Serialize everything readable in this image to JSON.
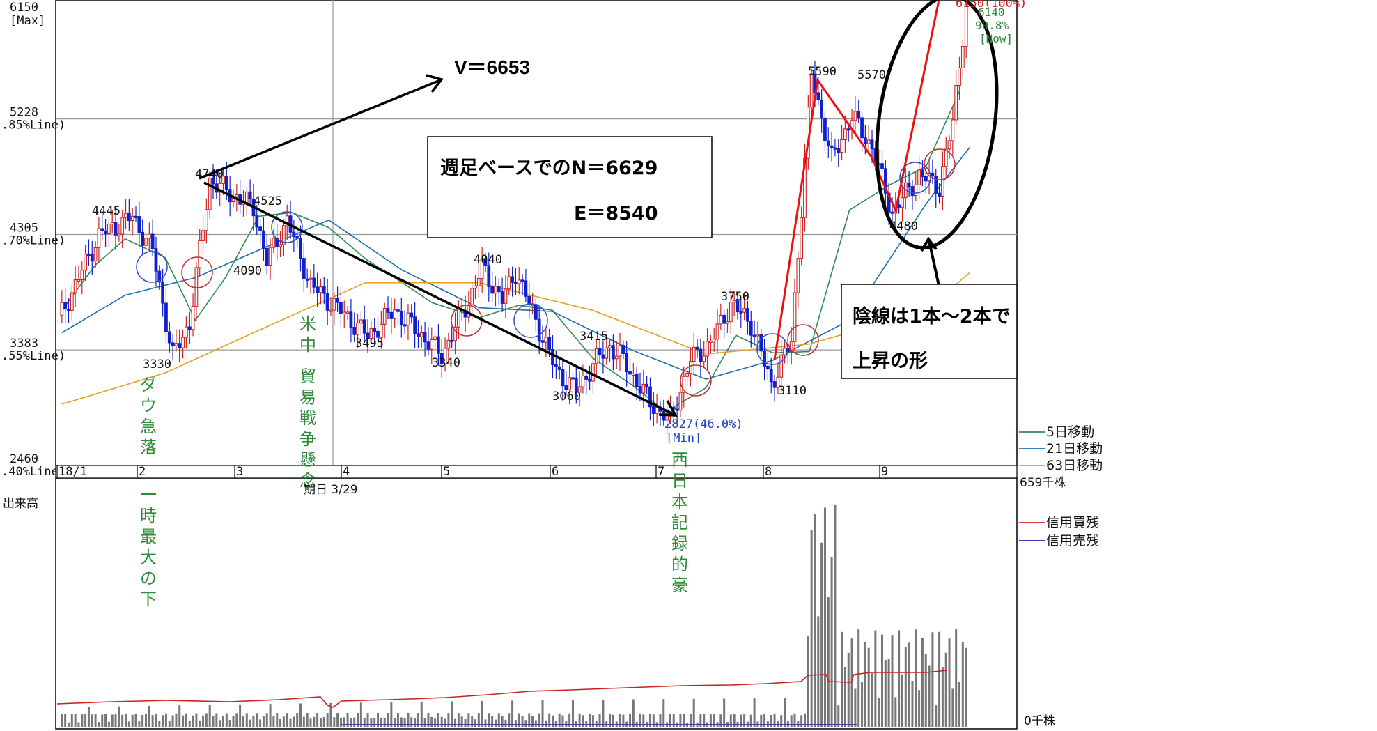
{
  "chart_data": {
    "type": "candlestick",
    "title": "",
    "y_axis": {
      "ticks": [
        {
          "value": 6150,
          "label": "6150",
          "sub": "[Max]"
        },
        {
          "value": 5228,
          "label": "5228",
          "sub": "85%Line)"
        },
        {
          "value": 4305,
          "label": "4305",
          "sub": "70%Line)"
        },
        {
          "value": 3383,
          "label": "3383",
          "sub": "55%Line)"
        },
        {
          "value": 2460,
          "label": "2460",
          "sub": "40%Line)"
        }
      ],
      "range": [
        2460,
        6150
      ]
    },
    "x_axis": {
      "months": [
        "18/1",
        "2",
        "3",
        "4",
        "5",
        "6",
        "7",
        "8",
        "9"
      ],
      "range": [
        "2018-01-04",
        "2018-10-04"
      ]
    },
    "period_label": "期日 3/29",
    "price_labels": [
      "4445",
      "4740",
      "4525",
      "4090",
      "3330",
      "3495",
      "4040",
      "3340",
      "3060",
      "3415",
      "3750",
      "3110",
      "5590",
      "5570",
      "4480"
    ],
    "min_label": [
      "2827(46.0%)",
      "[Min]"
    ],
    "max_label": "6150(100%)",
    "current_label": [
      "6140",
      "99.8%",
      "[Now]"
    ],
    "series": [
      {
        "name": "5日移動",
        "color": "#2e8b57",
        "points": [
          [
            "2018-01-05",
            3700
          ],
          [
            "2018-01-15",
            4060
          ],
          [
            "2018-01-24",
            4270
          ],
          [
            "2018-02-05",
            4120
          ],
          [
            "2018-02-14",
            3620
          ],
          [
            "2018-02-23",
            3960
          ],
          [
            "2018-03-05",
            4450
          ],
          [
            "2018-03-15",
            4480
          ],
          [
            "2018-03-26",
            4360
          ],
          [
            "2018-04-06",
            4110
          ],
          [
            "2018-04-17",
            3920
          ],
          [
            "2018-04-26",
            3760
          ],
          [
            "2018-05-10",
            3640
          ],
          [
            "2018-05-22",
            3740
          ],
          [
            "2018-06-01",
            3700
          ],
          [
            "2018-06-13",
            3320
          ],
          [
            "2018-06-25",
            3100
          ],
          [
            "2018-07-05",
            2890
          ],
          [
            "2018-07-17",
            3080
          ],
          [
            "2018-07-26",
            3500
          ],
          [
            "2018-08-06",
            3360
          ],
          [
            "2018-08-17",
            3370
          ],
          [
            "2018-08-29",
            4500
          ],
          [
            "2018-09-10",
            4700
          ],
          [
            "2018-09-21",
            4850
          ],
          [
            "2018-10-01",
            5450
          ]
        ]
      },
      {
        "name": "21日移動",
        "color": "#1e6fb0",
        "points": [
          [
            "2018-01-05",
            3520
          ],
          [
            "2018-01-24",
            3820
          ],
          [
            "2018-02-14",
            3960
          ],
          [
            "2018-03-05",
            4180
          ],
          [
            "2018-03-26",
            4420
          ],
          [
            "2018-04-17",
            4020
          ],
          [
            "2018-05-10",
            3720
          ],
          [
            "2018-06-01",
            3690
          ],
          [
            "2018-06-25",
            3380
          ],
          [
            "2018-07-17",
            3150
          ],
          [
            "2018-08-06",
            3300
          ],
          [
            "2018-08-29",
            3620
          ],
          [
            "2018-09-21",
            4550
          ],
          [
            "2018-10-04",
            5000
          ]
        ]
      },
      {
        "name": "63日移動",
        "color": "#e8a020",
        "points": [
          [
            "2018-01-05",
            2950
          ],
          [
            "2018-02-05",
            3200
          ],
          [
            "2018-03-05",
            3540
          ],
          [
            "2018-04-06",
            3920
          ],
          [
            "2018-05-10",
            3920
          ],
          [
            "2018-06-13",
            3700
          ],
          [
            "2018-07-17",
            3350
          ],
          [
            "2018-08-17",
            3430
          ],
          [
            "2018-09-21",
            3700
          ],
          [
            "2018-10-04",
            4000
          ]
        ]
      }
    ],
    "volume": {
      "label": "出来高",
      "max_label": "659千株",
      "zero_label": "0千株",
      "lines": [
        {
          "name": "信用買残",
          "color": "#cc2020"
        },
        {
          "name": "信用売残",
          "color": "#2020a0"
        }
      ]
    }
  },
  "annotations": {
    "v_text": "V＝6653",
    "box1": {
      "line1": "週足ベースでのN＝6629",
      "line2": "E＝8540"
    },
    "box2": {
      "line1": "陰線は1本～2本で",
      "line2": "上昇の形"
    },
    "event_dow": "ダウ急落",
    "event_trade": "米中 貿易戦争懸念",
    "event_rain": "西日本記録的豪",
    "event_drop": "一時最大の下"
  }
}
